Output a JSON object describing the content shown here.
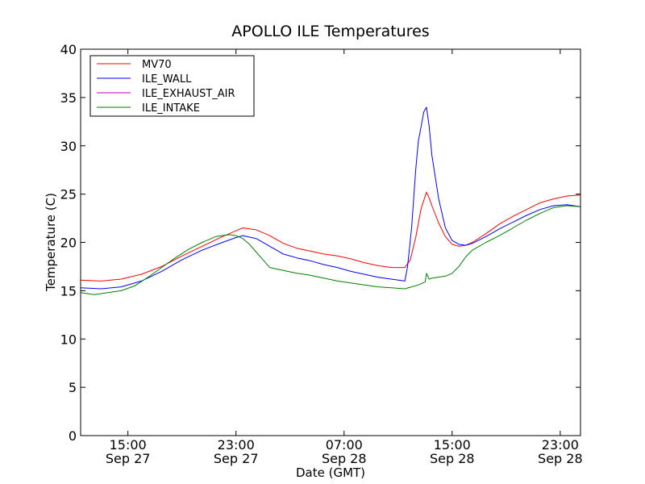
{
  "chart_data": {
    "type": "line",
    "title": "APOLLO ILE Temperatures",
    "xlabel": "Date (GMT)",
    "ylabel": "Temperature (C)",
    "ylim": [
      0,
      40
    ],
    "yticks": [
      0,
      5,
      10,
      15,
      20,
      25,
      30,
      35,
      40
    ],
    "xlim_hours": [
      0,
      37
    ],
    "x_unit": "hours since Sep 27 11:30 GMT",
    "xticks": [
      {
        "hour": 3.5,
        "time": "15:00",
        "date": "Sep 27"
      },
      {
        "hour": 11.5,
        "time": "23:00",
        "date": "Sep 27"
      },
      {
        "hour": 19.5,
        "time": "07:00",
        "date": "Sep 28"
      },
      {
        "hour": 27.5,
        "time": "15:00",
        "date": "Sep 28"
      },
      {
        "hour": 35.5,
        "time": "23:00",
        "date": "Sep 28"
      }
    ],
    "legend_position": "top-left",
    "series": [
      {
        "name": "MV70",
        "color": "#ff0000",
        "x": [
          0,
          1.5,
          3,
          4.5,
          6,
          7.5,
          9,
          10.5,
          11.5,
          12,
          13,
          14,
          15,
          16,
          17,
          18,
          19,
          20,
          21,
          22,
          23,
          24,
          24.4,
          24.8,
          25.2,
          25.6,
          25.8,
          26,
          26.5,
          27,
          27.5,
          28,
          28.5,
          29,
          30,
          31,
          32,
          33,
          34,
          35,
          36,
          37
        ],
        "y": [
          16.1,
          16.0,
          16.2,
          16.7,
          17.5,
          18.6,
          19.6,
          20.6,
          21.2,
          21.5,
          21.3,
          20.7,
          19.9,
          19.4,
          19.1,
          18.8,
          18.6,
          18.3,
          17.9,
          17.6,
          17.4,
          17.4,
          18.2,
          20.5,
          23.5,
          25.2,
          24.6,
          23.8,
          22.0,
          20.6,
          19.8,
          19.6,
          19.7,
          20.0,
          20.9,
          21.9,
          22.7,
          23.4,
          24.1,
          24.5,
          24.8,
          24.9
        ]
      },
      {
        "name": "ILE_WALL",
        "color": "#0000ff",
        "x": [
          0,
          1.5,
          3,
          4.5,
          6,
          7.5,
          9,
          10.5,
          11.5,
          12,
          13,
          14,
          15,
          16,
          17,
          18,
          19,
          20,
          21,
          22,
          23,
          24,
          24.2,
          24.5,
          24.8,
          25.0,
          25.2,
          25.4,
          25.6,
          25.8,
          26.0,
          26.5,
          27,
          27.5,
          28,
          28.5,
          29,
          30,
          31,
          32,
          33,
          34,
          35,
          36,
          37
        ],
        "y": [
          15.3,
          15.2,
          15.4,
          16.0,
          17.0,
          18.2,
          19.2,
          20.0,
          20.5,
          20.7,
          20.4,
          19.6,
          18.8,
          18.4,
          18.1,
          17.7,
          17.4,
          17.0,
          16.7,
          16.4,
          16.2,
          16.0,
          17.5,
          21.5,
          27.5,
          30.5,
          32.0,
          33.5,
          34.0,
          32.0,
          29.0,
          24.5,
          21.5,
          20.2,
          19.8,
          19.7,
          19.9,
          20.6,
          21.4,
          22.1,
          22.8,
          23.4,
          23.8,
          23.9,
          23.7
        ]
      },
      {
        "name": "ILE_EXHAUST_AIR",
        "color": "#bf00bf",
        "x": [],
        "y": []
      },
      {
        "name": "ILE_INTAKE",
        "color": "#008000",
        "x": [
          0,
          1,
          2,
          3,
          4,
          5,
          6,
          7,
          8,
          9,
          10,
          11,
          11.5,
          12,
          12.5,
          13,
          13.5,
          14,
          15,
          16,
          17,
          18,
          19,
          20,
          21,
          22,
          23,
          24,
          25,
          25.5,
          25.6,
          25.8,
          26,
          27,
          27.5,
          28,
          28.5,
          29,
          30,
          31,
          32,
          33,
          34,
          35,
          36,
          37
        ],
        "y": [
          14.8,
          14.6,
          14.8,
          15.0,
          15.5,
          16.4,
          17.4,
          18.4,
          19.3,
          20.0,
          20.6,
          20.8,
          20.7,
          20.4,
          19.8,
          19.0,
          18.2,
          17.4,
          17.1,
          16.8,
          16.6,
          16.3,
          16.0,
          15.8,
          15.6,
          15.4,
          15.3,
          15.2,
          15.6,
          15.9,
          16.8,
          16.2,
          16.3,
          16.5,
          16.8,
          17.5,
          18.5,
          19.2,
          20.0,
          20.7,
          21.5,
          22.3,
          23.0,
          23.6,
          23.8,
          23.7
        ]
      }
    ]
  }
}
